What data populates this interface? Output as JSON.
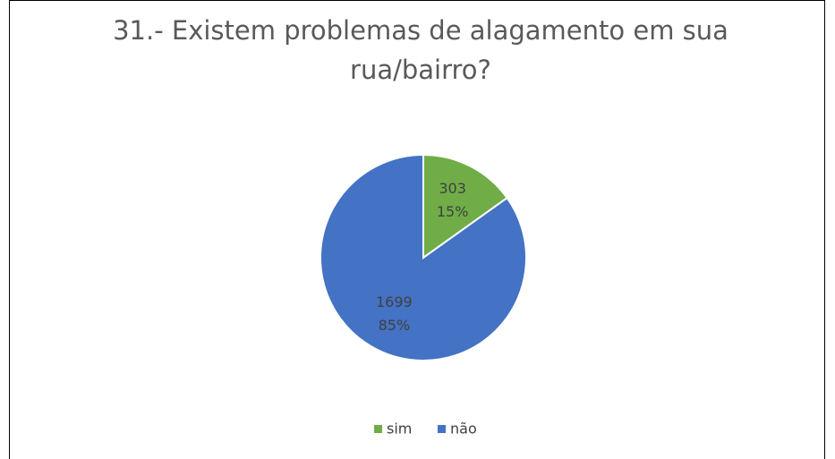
{
  "chart_data": {
    "type": "pie",
    "title": "31.- Existem problemas de alagamento em sua rua/bairro?",
    "categories": [
      "sim",
      "não"
    ],
    "values": [
      303,
      1699
    ],
    "percent_labels": [
      "15%",
      "85%"
    ],
    "colors": [
      "#70ad47",
      "#4472c4"
    ],
    "legend": "bottom"
  }
}
